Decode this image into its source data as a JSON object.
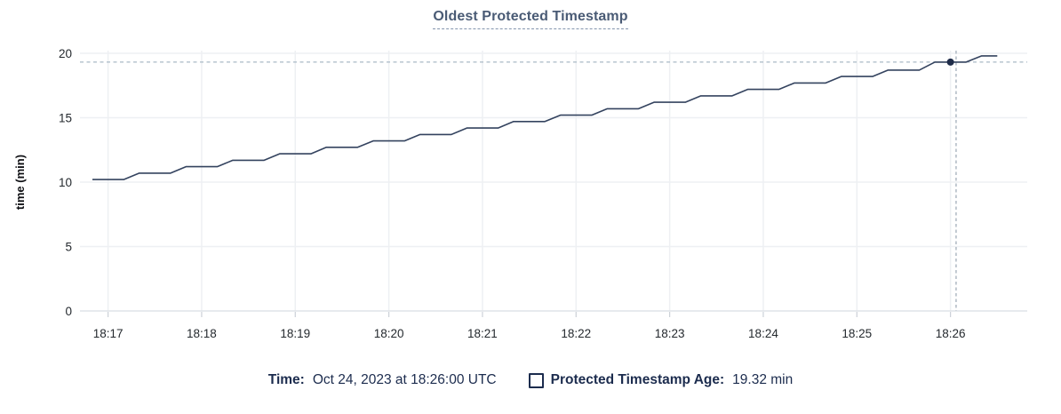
{
  "colors": {
    "title": "#4a5b75",
    "title_underline": "#8495ad",
    "series_line": "#34435f",
    "hover_dot": "#1f2c49",
    "crosshair_h": "#a9b9c6",
    "crosshair_v": "#a2aeba",
    "gridline": "#eef0f3",
    "axis_line": "#dfe3e8",
    "tick_mark": "#ccd1d8",
    "tick_text": "#24292e",
    "axis_label": "#0f1014",
    "legend_text": "#1c2c4e"
  },
  "legend": {
    "time_label": "Time:",
    "time_value": "Oct 24, 2023 at 18:26:00 UTC",
    "series_label": "Protected Timestamp Age:",
    "series_value": "19.32 min"
  },
  "chart_data": {
    "type": "line",
    "title": "Oldest Protected Timestamp",
    "ylabel": "time (min)",
    "xlabel": "",
    "grid": true,
    "xlim_minutes_after_1800": [
      16.7,
      26.82
    ],
    "ylim": [
      0,
      20
    ],
    "y_ticks": [
      {
        "value": 0,
        "label": "0"
      },
      {
        "value": 5,
        "label": "5"
      },
      {
        "value": 10,
        "label": "10"
      },
      {
        "value": 15,
        "label": "15"
      },
      {
        "value": 20,
        "label": "20"
      }
    ],
    "x_ticks": [
      {
        "minute": 17,
        "label": "18:17"
      },
      {
        "minute": 18,
        "label": "18:18"
      },
      {
        "minute": 19,
        "label": "18:19"
      },
      {
        "minute": 20,
        "label": "18:20"
      },
      {
        "minute": 21,
        "label": "18:21"
      },
      {
        "minute": 22,
        "label": "18:22"
      },
      {
        "minute": 23,
        "label": "18:23"
      },
      {
        "minute": 24,
        "label": "18:24"
      },
      {
        "minute": 25,
        "label": "18:25"
      },
      {
        "minute": 26,
        "label": "18:26"
      }
    ],
    "series": [
      {
        "name": "Protected Timestamp Age",
        "unit": "min",
        "points": [
          [
            16.833,
            10.2
          ],
          [
            17.167,
            10.2
          ],
          [
            17.333,
            10.7
          ],
          [
            17.667,
            10.7
          ],
          [
            17.833,
            11.2
          ],
          [
            18.167,
            11.2
          ],
          [
            18.333,
            11.7
          ],
          [
            18.667,
            11.7
          ],
          [
            18.833,
            12.2
          ],
          [
            19.167,
            12.2
          ],
          [
            19.333,
            12.7
          ],
          [
            19.667,
            12.7
          ],
          [
            19.833,
            13.2
          ],
          [
            20.167,
            13.2
          ],
          [
            20.333,
            13.7
          ],
          [
            20.667,
            13.7
          ],
          [
            20.833,
            14.2
          ],
          [
            21.167,
            14.2
          ],
          [
            21.333,
            14.7
          ],
          [
            21.667,
            14.7
          ],
          [
            21.833,
            15.2
          ],
          [
            22.167,
            15.2
          ],
          [
            22.333,
            15.7
          ],
          [
            22.667,
            15.7
          ],
          [
            22.833,
            16.2
          ],
          [
            23.167,
            16.2
          ],
          [
            23.333,
            16.7
          ],
          [
            23.667,
            16.7
          ],
          [
            23.833,
            17.2
          ],
          [
            24.167,
            17.2
          ],
          [
            24.333,
            17.7
          ],
          [
            24.667,
            17.7
          ],
          [
            24.833,
            18.2
          ],
          [
            25.167,
            18.2
          ],
          [
            25.333,
            18.7
          ],
          [
            25.667,
            18.7
          ],
          [
            25.833,
            19.32
          ],
          [
            26.167,
            19.32
          ],
          [
            26.333,
            19.8
          ],
          [
            26.5,
            19.8
          ]
        ]
      }
    ],
    "hover": {
      "cursor_x_minute": 26.06,
      "snap_point": [
        26.0,
        19.32
      ],
      "hline_value": 19.32,
      "time_text": "Oct 24, 2023 at 18:26:00 UTC",
      "value_text": "19.32 min"
    }
  }
}
